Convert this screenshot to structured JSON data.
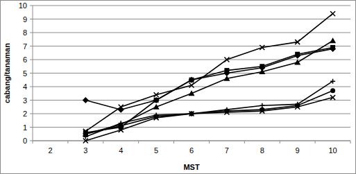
{
  "chart_data": {
    "type": "line",
    "x_label": "MST",
    "y_label": "cabang/tanaman",
    "categories": [
      "2",
      "3",
      "4",
      "5",
      "6",
      "7",
      "8",
      "9",
      "10"
    ],
    "ylim": [
      0,
      10
    ],
    "yticks": [
      0,
      1,
      2,
      3,
      4,
      5,
      6,
      7,
      8,
      9,
      10
    ],
    "grid": true,
    "series": [
      {
        "color": "#000000",
        "marker": "diamond",
        "values": [
          null,
          3.0,
          2.3,
          3.0,
          4.5,
          5.0,
          5.4,
          6.3,
          6.8
        ]
      },
      {
        "color": "#000000",
        "marker": "x",
        "values": [
          null,
          0.7,
          2.5,
          3.4,
          4.1,
          6.0,
          6.9,
          7.3,
          9.4
        ]
      },
      {
        "color": "#000000",
        "marker": "triangle",
        "values": [
          null,
          0.5,
          1.2,
          2.5,
          3.5,
          4.6,
          5.1,
          5.8,
          7.4
        ]
      },
      {
        "color": "#000000",
        "marker": "square",
        "values": [
          null,
          0.6,
          1.0,
          3.0,
          4.5,
          5.2,
          5.5,
          6.4,
          6.9
        ]
      },
      {
        "color": "#000000",
        "marker": "plus",
        "values": [
          null,
          0.3,
          1.3,
          1.9,
          2.0,
          2.3,
          2.6,
          2.7,
          4.4
        ]
      },
      {
        "color": "#000000",
        "marker": "circle",
        "values": [
          null,
          0.5,
          1.1,
          1.8,
          2.0,
          2.2,
          2.3,
          2.6,
          3.7
        ]
      },
      {
        "color": "#000000",
        "marker": "x",
        "values": [
          null,
          0.0,
          0.8,
          1.7,
          2.0,
          2.1,
          2.2,
          2.5,
          3.2
        ]
      }
    ]
  }
}
